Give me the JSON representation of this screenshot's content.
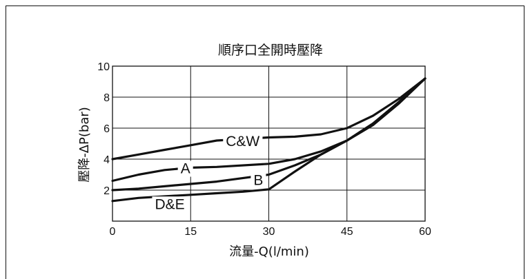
{
  "chart_data": {
    "type": "line",
    "title": "順序口全開時壓降",
    "xlabel": "流量-Q(l/min)",
    "ylabel": "壓降-ΔP(bar)",
    "xlim": [
      0,
      60
    ],
    "ylim": [
      0,
      10
    ],
    "xticks": [
      "0",
      "15",
      "30",
      "45",
      "60"
    ],
    "yticks": [
      "2",
      "4",
      "6",
      "8",
      "10"
    ],
    "grid": true,
    "series": [
      {
        "name": "C&W",
        "x": [
          0,
          5,
          10,
          15,
          20,
          30,
          35,
          40,
          45,
          50,
          55,
          60
        ],
        "y": [
          4.0,
          4.3,
          4.6,
          4.9,
          5.2,
          5.4,
          5.45,
          5.6,
          6.0,
          6.8,
          7.9,
          9.2
        ]
      },
      {
        "name": "A",
        "x": [
          0,
          5,
          10,
          15,
          20,
          30,
          35,
          40,
          45,
          50,
          55,
          60
        ],
        "y": [
          2.6,
          3.0,
          3.3,
          3.45,
          3.5,
          3.7,
          4.0,
          4.5,
          5.2,
          6.2,
          7.6,
          9.2
        ]
      },
      {
        "name": "B",
        "x": [
          0,
          5,
          10,
          15,
          20,
          30,
          35,
          40,
          45,
          50,
          55,
          60
        ],
        "y": [
          2.0,
          2.1,
          2.25,
          2.4,
          2.55,
          3.0,
          3.6,
          4.3,
          5.2,
          6.3,
          7.7,
          9.2
        ]
      },
      {
        "name": "D&E",
        "x": [
          0,
          5,
          10,
          15,
          20,
          25,
          30,
          35,
          40,
          45,
          50,
          55,
          60
        ],
        "y": [
          1.3,
          1.5,
          1.6,
          1.7,
          1.8,
          1.9,
          2.05,
          3.2,
          4.3,
          5.2,
          6.3,
          7.7,
          9.2
        ]
      }
    ],
    "curve_labels": [
      "C&W",
      "A",
      "B",
      "D&E"
    ]
  }
}
